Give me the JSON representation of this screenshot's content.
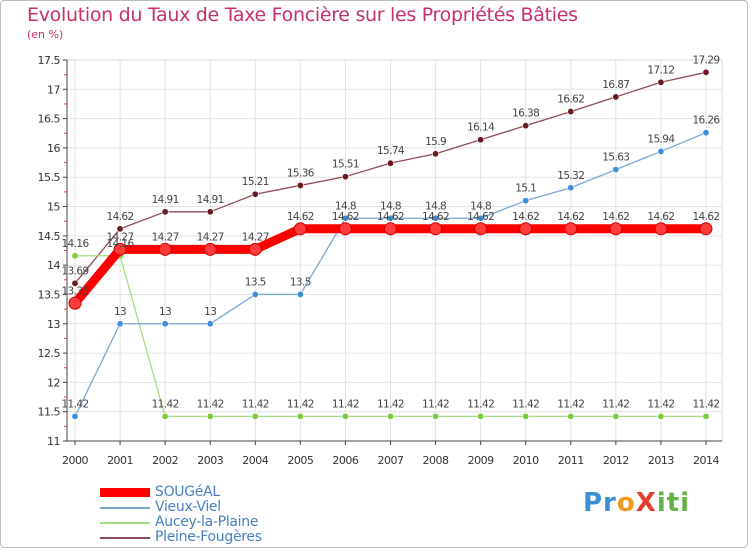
{
  "chart_data": {
    "type": "line",
    "title": "Evolution du Taux de Taxe Foncière sur les Propriétés Bâties",
    "subtitle": "(en %)",
    "x": [
      "2000",
      "2001",
      "2002",
      "2003",
      "2004",
      "2005",
      "2006",
      "2007",
      "2008",
      "2009",
      "2010",
      "2011",
      "2012",
      "2013",
      "2014"
    ],
    "y_ticks": [
      "11",
      "11.5",
      "12",
      "12.5",
      "13",
      "13.5",
      "14",
      "14.5",
      "15",
      "15.5",
      "16",
      "16.5",
      "17",
      "17.5"
    ],
    "ylim": [
      11,
      17.5
    ],
    "series": [
      {
        "name": "SOUGéAL",
        "color": "#ff0000",
        "dot_color": "#ff3b3b",
        "values": [
          13.35,
          14.27,
          14.27,
          14.27,
          14.27,
          14.62,
          14.62,
          14.62,
          14.62,
          14.62,
          14.62,
          14.62,
          14.62,
          14.62,
          14.62
        ],
        "labels": [
          "13.35",
          "14.27",
          "14.27",
          "14.27",
          "14.27",
          "14.62",
          "14.62",
          "14.62",
          "14.62",
          "14.62",
          "14.62",
          "14.62",
          "14.62",
          "14.62",
          "14.62"
        ]
      },
      {
        "name": "Vieux-Viel",
        "color": "#7aa6d2",
        "dot_color": "#3e8fd8",
        "values": [
          11.42,
          13,
          13,
          13,
          13.5,
          13.5,
          14.8,
          14.8,
          14.8,
          14.8,
          15.1,
          15.32,
          15.63,
          15.94,
          16.26
        ],
        "labels": [
          "11.42",
          "13",
          "13",
          "13",
          "13.5",
          "13.5",
          "14.8",
          "14.8",
          "14.8",
          "14.8",
          "15.1",
          "15.32",
          "15.63",
          "15.94",
          "16.26"
        ]
      },
      {
        "name": "Aucey-la-Plaine",
        "color": "#a6dc82",
        "dot_color": "#7acc3e",
        "values": [
          14.16,
          14.16,
          11.42,
          11.42,
          11.42,
          11.42,
          11.42,
          11.42,
          11.42,
          11.42,
          11.42,
          11.42,
          11.42,
          11.42,
          11.42
        ],
        "labels": [
          "14.16",
          "14.16",
          "11.42",
          "11.42",
          "11.42",
          "11.42",
          "11.42",
          "11.42",
          "11.42",
          "11.42",
          "11.42",
          "11.42",
          "11.42",
          "11.42",
          "11.42"
        ]
      },
      {
        "name": "Pleine-Fougères",
        "color": "#8e4b5a",
        "dot_color": "#6b1a22",
        "values": [
          13.69,
          14.62,
          14.91,
          14.91,
          15.21,
          15.36,
          15.51,
          15.74,
          15.9,
          16.14,
          16.38,
          16.62,
          16.87,
          17.12,
          17.29
        ],
        "labels": [
          "13.69",
          "14.62",
          "14.91",
          "14.91",
          "15.21",
          "15.36",
          "15.51",
          "15.74",
          "15.9",
          "16.14",
          "16.38",
          "16.62",
          "16.87",
          "17.12",
          "17.29"
        ]
      }
    ],
    "legend": [
      "SOUGéAL",
      "Vieux-Viel",
      "Aucey-la-Plaine",
      "Pleine-Fougères"
    ]
  },
  "logo_text": "ProXiti"
}
